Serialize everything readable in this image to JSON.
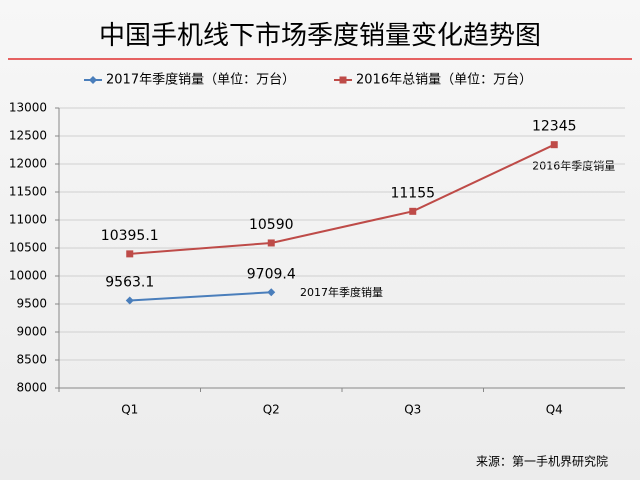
{
  "chart_data": {
    "type": "line",
    "title": "中国手机线下市场季度销量变化趋势图",
    "categories": [
      "Q1",
      "Q2",
      "Q3",
      "Q4"
    ],
    "series": [
      {
        "name": "2017年季度销量（单位：万台）",
        "color": "#4a7ebb",
        "marker": "diamond",
        "values": [
          9563.1,
          9709.4,
          null,
          null
        ]
      },
      {
        "name": "2016年总销量（单位：万台）",
        "color": "#be4b48",
        "marker": "square",
        "values": [
          10395.1,
          10590,
          11155,
          12345
        ]
      }
    ],
    "ylim": [
      8000,
      13000
    ],
    "yticks": [
      8000,
      8500,
      9000,
      9500,
      10000,
      10500,
      11000,
      11500,
      12000,
      12500,
      13000
    ],
    "grid": true,
    "legend": "top",
    "annotations": [
      "2016年季度销量",
      "2017年季度销量"
    ],
    "source": "来源：第一手机界研究院"
  }
}
